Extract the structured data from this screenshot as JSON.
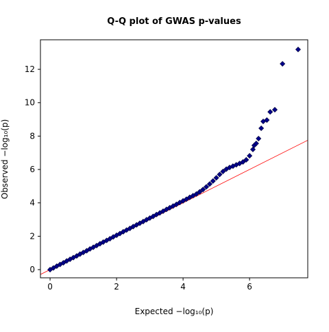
{
  "chart_data": {
    "type": "scatter",
    "title": "Q-Q plot of GWAS p-values",
    "xlabel": "Expected  −log₁₀(p)",
    "ylabel": "Observed  −log₁₀(p)",
    "x": [
      0,
      0.1,
      0.2,
      0.3,
      0.4,
      0.5,
      0.6,
      0.7,
      0.8,
      0.9,
      1.0,
      1.1,
      1.2,
      1.3,
      1.4,
      1.5,
      1.6,
      1.7,
      1.8,
      1.9,
      2.0,
      2.1,
      2.2,
      2.3,
      2.4,
      2.5,
      2.6,
      2.7,
      2.8,
      2.9,
      3.0,
      3.1,
      3.2,
      3.3,
      3.4,
      3.5,
      3.6,
      3.7,
      3.8,
      3.9,
      4.0,
      4.1,
      4.2,
      4.3,
      4.4,
      4.5,
      4.6,
      4.7,
      4.8,
      4.9,
      5.0,
      5.1,
      5.2,
      5.3,
      5.4,
      5.5,
      5.6,
      5.7,
      5.8,
      5.9,
      6.0,
      6.1,
      6.14,
      6.2,
      6.27,
      6.35,
      6.41,
      6.52,
      6.62,
      6.76,
      6.99,
      7.46
    ],
    "values": [
      0,
      0.1,
      0.21,
      0.31,
      0.41,
      0.52,
      0.62,
      0.72,
      0.82,
      0.93,
      1.03,
      1.13,
      1.24,
      1.34,
      1.44,
      1.55,
      1.65,
      1.75,
      1.85,
      1.96,
      2.06,
      2.16,
      2.27,
      2.37,
      2.47,
      2.58,
      2.68,
      2.78,
      2.88,
      2.99,
      3.09,
      3.19,
      3.3,
      3.4,
      3.5,
      3.61,
      3.71,
      3.81,
      3.91,
      4.02,
      4.12,
      4.22,
      4.33,
      4.43,
      4.53,
      4.66,
      4.8,
      4.96,
      5.13,
      5.31,
      5.5,
      5.7,
      5.88,
      6.02,
      6.12,
      6.2,
      6.28,
      6.36,
      6.45,
      6.58,
      6.82,
      7.2,
      7.44,
      7.56,
      7.85,
      8.47,
      8.88,
      8.96,
      9.45,
      9.58,
      12.33,
      13.19
    ],
    "color": "#00008b",
    "reference_line": {
      "slope": 1,
      "intercept": 0,
      "color": "#ff0000"
    },
    "xlim": [
      -0.29,
      7.75
    ],
    "ylim": [
      -0.49,
      13.77
    ],
    "xticks": [
      0,
      2,
      4,
      6
    ],
    "yticks": [
      0,
      2,
      4,
      6,
      8,
      10,
      12
    ]
  }
}
